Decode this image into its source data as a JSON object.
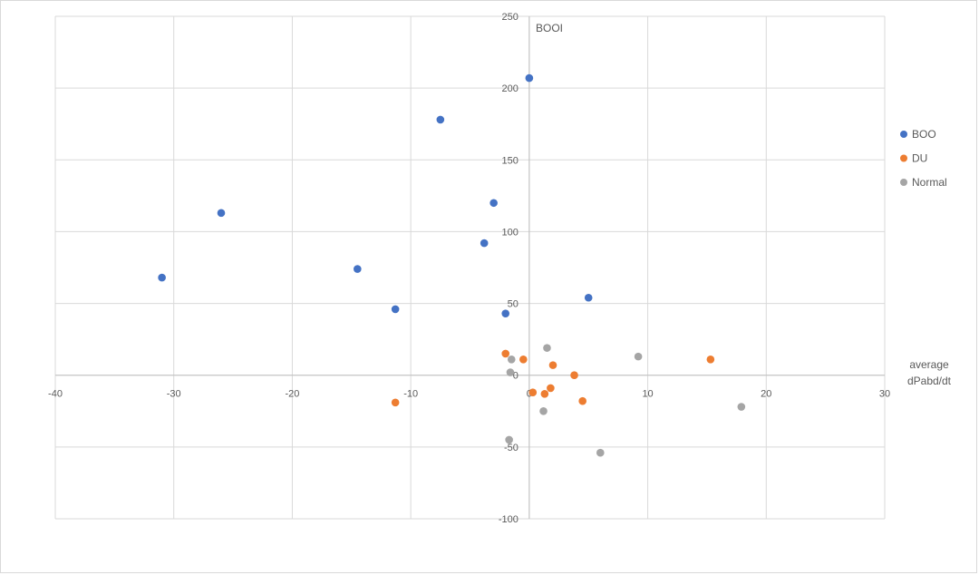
{
  "chart_data": {
    "type": "scatter",
    "y_axis_title": "BOOI",
    "x_axis_title_lines": [
      "average",
      "dPabd/dt"
    ],
    "xlim": [
      -40,
      30
    ],
    "ylim": [
      -100,
      250
    ],
    "x_ticks": [
      -40,
      -30,
      -20,
      -10,
      0,
      10,
      20,
      30
    ],
    "y_ticks": [
      -100,
      -50,
      0,
      50,
      100,
      150,
      200,
      250
    ],
    "grid": true,
    "legend_position": "right",
    "series": [
      {
        "name": "BOO",
        "color": "#4472c4",
        "points": [
          [
            -31,
            68
          ],
          [
            -26,
            113
          ],
          [
            -14.5,
            74
          ],
          [
            -11.3,
            46
          ],
          [
            -7.5,
            178
          ],
          [
            -3.8,
            92
          ],
          [
            -3,
            120
          ],
          [
            -2,
            43
          ],
          [
            0,
            207
          ],
          [
            5,
            54
          ]
        ]
      },
      {
        "name": "DU",
        "color": "#ed7d31",
        "points": [
          [
            -11.3,
            -19
          ],
          [
            -2,
            15
          ],
          [
            -0.5,
            11
          ],
          [
            0.3,
            -12
          ],
          [
            1.3,
            -13
          ],
          [
            1.8,
            -9
          ],
          [
            2,
            7
          ],
          [
            3.8,
            0
          ],
          [
            4.5,
            -18
          ],
          [
            15.3,
            11
          ]
        ]
      },
      {
        "name": "Normal",
        "color": "#a5a5a5",
        "points": [
          [
            -1.5,
            11
          ],
          [
            -1.6,
            2
          ],
          [
            1.2,
            -25
          ],
          [
            1.5,
            19
          ],
          [
            6,
            -54
          ],
          [
            9.2,
            13
          ],
          [
            17.9,
            -22
          ],
          [
            -1.7,
            -45
          ]
        ]
      }
    ]
  }
}
